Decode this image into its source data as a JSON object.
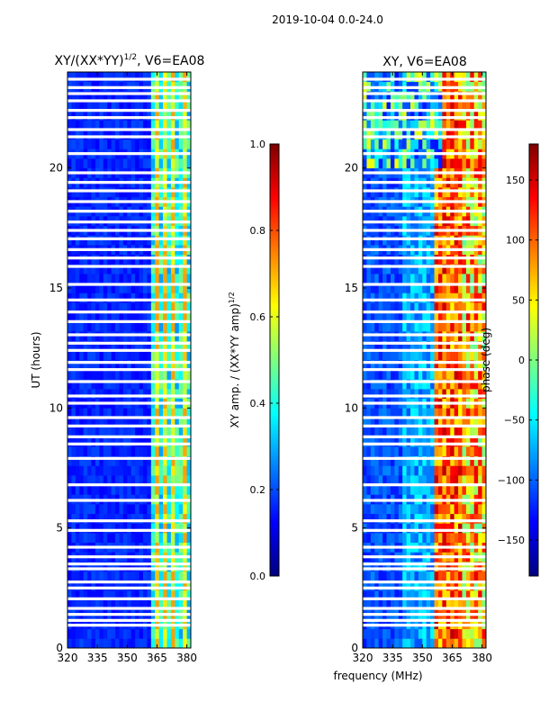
{
  "figure_title": "2019-10-04 0.0-24.0",
  "colors": {
    "jet": [
      "#00007f",
      "#0000ff",
      "#007fff",
      "#00ffff",
      "#7fff7f",
      "#ffff00",
      "#ff7f00",
      "#ff0000",
      "#7f0000"
    ],
    "frame": "#000000",
    "background": "#ffffff"
  },
  "chart_data": [
    {
      "type": "heatmap",
      "title": "XY/(XX*YY)",
      "title_sup": "1/2",
      "title_suffix": ", V6=EA08",
      "xlabel": "frequency (MHz)",
      "ylabel": "UT (hours)",
      "xlim": [
        320,
        382
      ],
      "ylim": [
        0,
        24
      ],
      "xticks": [
        "320",
        "335",
        "350",
        "365",
        "380"
      ],
      "xtick_values": [
        320,
        335,
        350,
        365,
        380
      ],
      "yticks": [
        "0",
        "5",
        "10",
        "15",
        "20"
      ],
      "ytick_values": [
        0,
        5,
        10,
        15,
        20
      ],
      "quantity": "XY amp. / (XX*YY amp)^1/2",
      "color_range": [
        0.0,
        1.0
      ]
    },
    {
      "type": "heatmap",
      "title": "XY, V6=EA08",
      "xlabel": "frequency (MHz)",
      "ylabel": "",
      "xlim": [
        320,
        382
      ],
      "ylim": [
        0,
        24
      ],
      "xticks": [
        "320",
        "335",
        "350",
        "365",
        "380"
      ],
      "xtick_values": [
        320,
        335,
        350,
        365,
        380
      ],
      "yticks": [
        "0",
        "5",
        "10",
        "15",
        "20"
      ],
      "ytick_values": [
        0,
        5,
        10,
        15,
        20
      ],
      "quantity": "phase (deg)",
      "color_range": [
        -180,
        180
      ]
    }
  ],
  "colorbars": [
    {
      "label": "XY amp. / (XX*YY amp)",
      "label_sup": "1/2",
      "range": [
        0.0,
        1.0
      ],
      "ticks": [
        "0.0",
        "0.2",
        "0.4",
        "0.6",
        "0.8",
        "1.0"
      ],
      "tick_values": [
        0.0,
        0.2,
        0.4,
        0.6,
        0.8,
        1.0
      ]
    },
    {
      "label": "phase (deg)",
      "range": [
        -180,
        180
      ],
      "ticks": [
        "-150",
        "-100",
        "-50",
        "0",
        "50",
        "100",
        "150"
      ],
      "tick_values": [
        -150,
        -100,
        -50,
        0,
        50,
        100,
        150
      ]
    }
  ],
  "xlabel_shared": "frequency (MHz)",
  "flagged_ut_hours": [
    0.95,
    1.15,
    1.4,
    1.65,
    2.05,
    2.5,
    2.75,
    3.3,
    3.5,
    3.8,
    4.2,
    4.9,
    5.3,
    6.15,
    6.8,
    7.9,
    8.5,
    8.8,
    9.25,
    9.6,
    10.2,
    10.5,
    11.1,
    11.6,
    11.9,
    12.4,
    12.7,
    13.05,
    13.6,
    14.0,
    14.5,
    15.15,
    15.9,
    16.25,
    16.6,
    17.05,
    17.4,
    17.75,
    18.2,
    18.6,
    19.05,
    19.4,
    19.8,
    20.6,
    21.3,
    21.6,
    22.1,
    22.4,
    22.8,
    23.1,
    23.35,
    23.7
  ]
}
